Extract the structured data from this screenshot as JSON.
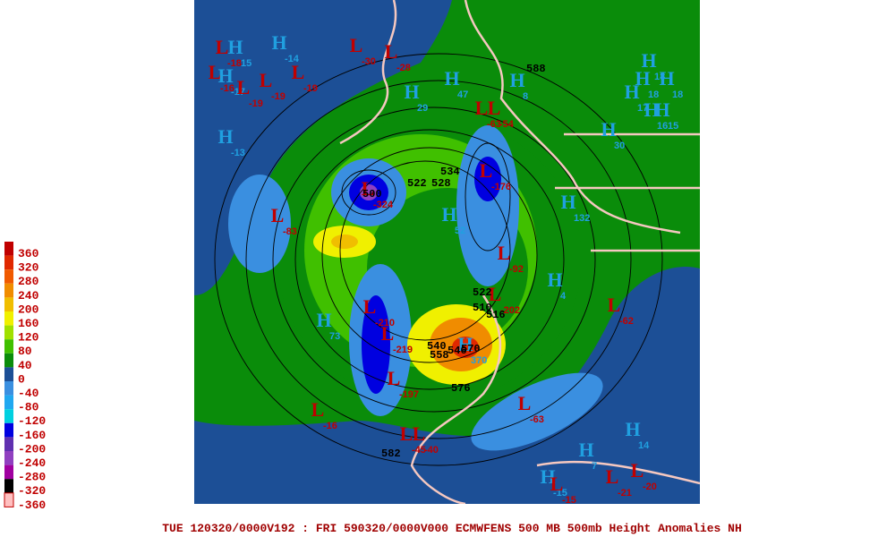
{
  "legend": {
    "levels": [
      {
        "label": "360",
        "color": "#c00000"
      },
      {
        "label": "320",
        "color": "#e02800"
      },
      {
        "label": "280",
        "color": "#f05a00"
      },
      {
        "label": "240",
        "color": "#f08c00"
      },
      {
        "label": "200",
        "color": "#f0be00"
      },
      {
        "label": "160",
        "color": "#f0f000"
      },
      {
        "label": "120",
        "color": "#a0e000"
      },
      {
        "label": "80",
        "color": "#40c000"
      },
      {
        "label": "40",
        "color": "#0a8c0a"
      },
      {
        "label": "0",
        "color": "#1c4f96"
      },
      {
        "label": "-40",
        "color": "#3a8fe0"
      },
      {
        "label": "-80",
        "color": "#20a8f0"
      },
      {
        "label": "-120",
        "color": "#00d0e0"
      },
      {
        "label": "-160",
        "color": "#0000e0"
      },
      {
        "label": "-200",
        "color": "#6030b0"
      },
      {
        "label": "-240",
        "color": "#9040c0"
      },
      {
        "label": "-280",
        "color": "#a000a0"
      },
      {
        "label": "-320",
        "color": "#000000"
      },
      {
        "label": "-360",
        "color": "#ffc0c0"
      }
    ]
  },
  "markers": [
    {
      "symbol": "L",
      "value": -18
    },
    {
      "symbol": "H",
      "value": 15
    },
    {
      "symbol": "H",
      "value": -14
    },
    {
      "symbol": "L",
      "value": -30
    },
    {
      "symbol": "L",
      "value": -28
    },
    {
      "symbol": "L",
      "value": -16
    },
    {
      "symbol": "H",
      "value": -17
    },
    {
      "symbol": "L",
      "value": -19
    },
    {
      "symbol": "L",
      "value": -19
    },
    {
      "symbol": "L",
      "value": -19
    },
    {
      "symbol": "H",
      "value": 29
    },
    {
      "symbol": "H",
      "value": 47
    },
    {
      "symbol": "H",
      "value": 8
    },
    {
      "symbol": "H",
      "value": 18
    },
    {
      "symbol": "H",
      "value": 18
    },
    {
      "symbol": "H",
      "value": 18
    },
    {
      "symbol": "H",
      "value": 17
    },
    {
      "symbol": "H",
      "value": 16
    },
    {
      "symbol": "H",
      "value": 15
    },
    {
      "symbol": "H",
      "value": 30
    },
    {
      "symbol": "H",
      "value": -13
    },
    {
      "symbol": "L",
      "value": -63
    },
    {
      "symbol": "L",
      "value": -54
    },
    {
      "symbol": "L",
      "value": -176
    },
    {
      "symbol": "L",
      "value": -324
    },
    {
      "symbol": "L",
      "value": -83
    },
    {
      "symbol": "H",
      "value": 52
    },
    {
      "symbol": "H",
      "value": 132
    },
    {
      "symbol": "L",
      "value": -92
    },
    {
      "symbol": "L",
      "value": -202
    },
    {
      "symbol": "H",
      "value": 4
    },
    {
      "symbol": "L",
      "value": -62
    },
    {
      "symbol": "H",
      "value": 73
    },
    {
      "symbol": "L",
      "value": -210
    },
    {
      "symbol": "L",
      "value": -219
    },
    {
      "symbol": "L",
      "value": -197
    },
    {
      "symbol": "H",
      "value": 370
    },
    {
      "symbol": "L",
      "value": -63
    },
    {
      "symbol": "L",
      "value": -16
    },
    {
      "symbol": "L",
      "value": -45
    },
    {
      "symbol": "L",
      "value": -40
    },
    {
      "symbol": "H",
      "value": 14
    },
    {
      "symbol": "H",
      "value": 7
    },
    {
      "symbol": "H",
      "value": -15
    },
    {
      "symbol": "L",
      "value": -15
    },
    {
      "symbol": "L",
      "value": -21
    },
    {
      "symbol": "L",
      "value": -20
    }
  ],
  "contour_labels": [
    588,
    534,
    522,
    528,
    500,
    522,
    516,
    510,
    540,
    546,
    558,
    570,
    576,
    582
  ],
  "footer": "TUE 120320/0000V192 : FRI 590320/0000V000  ECMWFENS  500 MB 500mb Height Anomalies NH"
}
